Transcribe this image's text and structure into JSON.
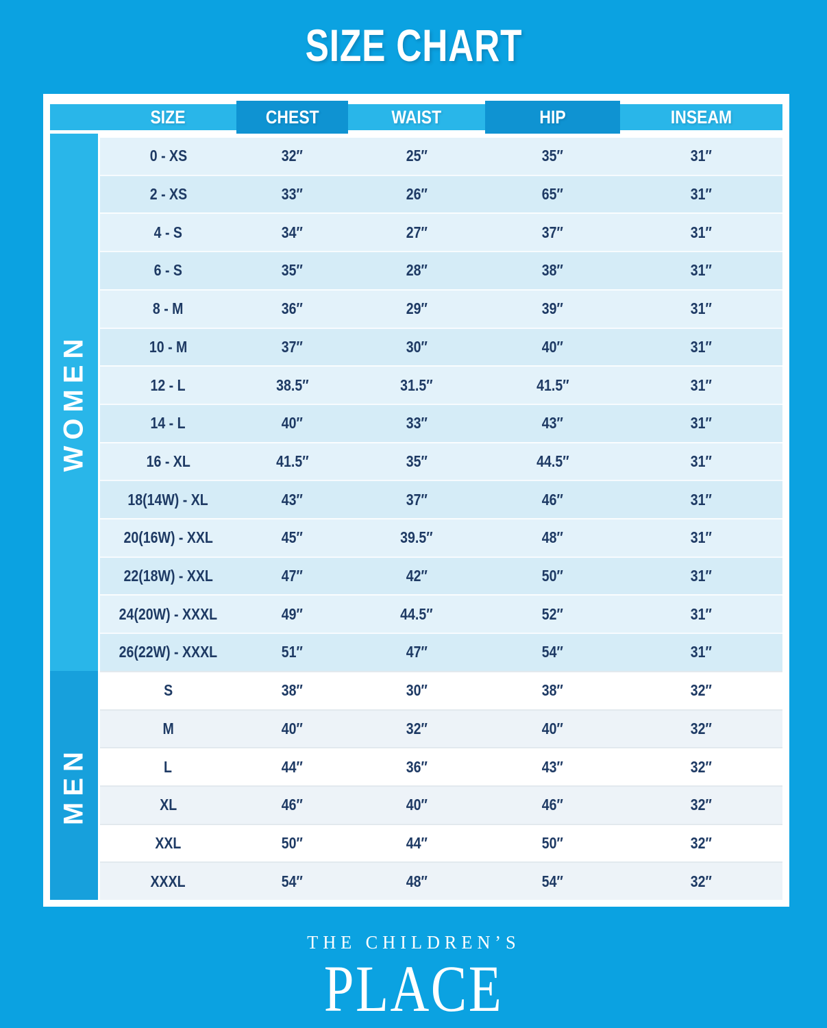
{
  "title": "SIZE CHART",
  "brand": {
    "name_line1": "THE CHILDREN’S",
    "name_line2": "PLACE"
  },
  "chart_data": {
    "type": "table",
    "title": "SIZE CHART",
    "columns": [
      "SIZE",
      "CHEST",
      "WAIST",
      "HIP",
      "INSEAM"
    ],
    "sections": [
      {
        "label": "WOMEN",
        "rows": [
          [
            "0 - XS",
            "32″",
            "25″",
            "35″",
            "31″"
          ],
          [
            "2 - XS",
            "33″",
            "26″",
            "65″",
            "31″"
          ],
          [
            "4 - S",
            "34″",
            "27″",
            "37″",
            "31″"
          ],
          [
            "6 - S",
            "35″",
            "28″",
            "38″",
            "31″"
          ],
          [
            "8 - M",
            "36″",
            "29″",
            "39″",
            "31″"
          ],
          [
            "10 - M",
            "37″",
            "30″",
            "40″",
            "31″"
          ],
          [
            "12 - L",
            "38.5″",
            "31.5″",
            "41.5″",
            "31″"
          ],
          [
            "14 - L",
            "40″",
            "33″",
            "43″",
            "31″"
          ],
          [
            "16 - XL",
            "41.5″",
            "35″",
            "44.5″",
            "31″"
          ],
          [
            "18(14W) - XL",
            "43″",
            "37″",
            "46″",
            "31″"
          ],
          [
            "20(16W) - XXL",
            "45″",
            "39.5″",
            "48″",
            "31″"
          ],
          [
            "22(18W) - XXL",
            "47″",
            "42″",
            "50″",
            "31″"
          ],
          [
            "24(20W) - XXXL",
            "49″",
            "44.5″",
            "52″",
            "31″"
          ],
          [
            "26(22W) - XXXL",
            "51″",
            "47″",
            "54″",
            "31″"
          ]
        ]
      },
      {
        "label": "MEN",
        "rows": [
          [
            "S",
            "38″",
            "30″",
            "38″",
            "32″"
          ],
          [
            "M",
            "40″",
            "32″",
            "40″",
            "32″"
          ],
          [
            "L",
            "44″",
            "36″",
            "43″",
            "32″"
          ],
          [
            "XL",
            "46″",
            "40″",
            "46″",
            "32″"
          ],
          [
            "XXL",
            "50″",
            "44″",
            "50″",
            "32″"
          ],
          [
            "XXXL",
            "54″",
            "48″",
            "54″",
            "32″"
          ]
        ]
      }
    ]
  },
  "colors": {
    "page_bg": "#0BA2E1",
    "header_light": "#29B6E9",
    "header_dark": "#0F93D2",
    "sidebar_women": "#29B6E9",
    "sidebar_men": "#17A0DC",
    "row_women_light": "#E3F2FA",
    "row_women_dark": "#D5ECF7",
    "row_men_light": "#FFFFFF",
    "row_men_dark": "#EDF3F8",
    "text_navy": "#1E3A64",
    "text_white": "#FFFFFF"
  }
}
